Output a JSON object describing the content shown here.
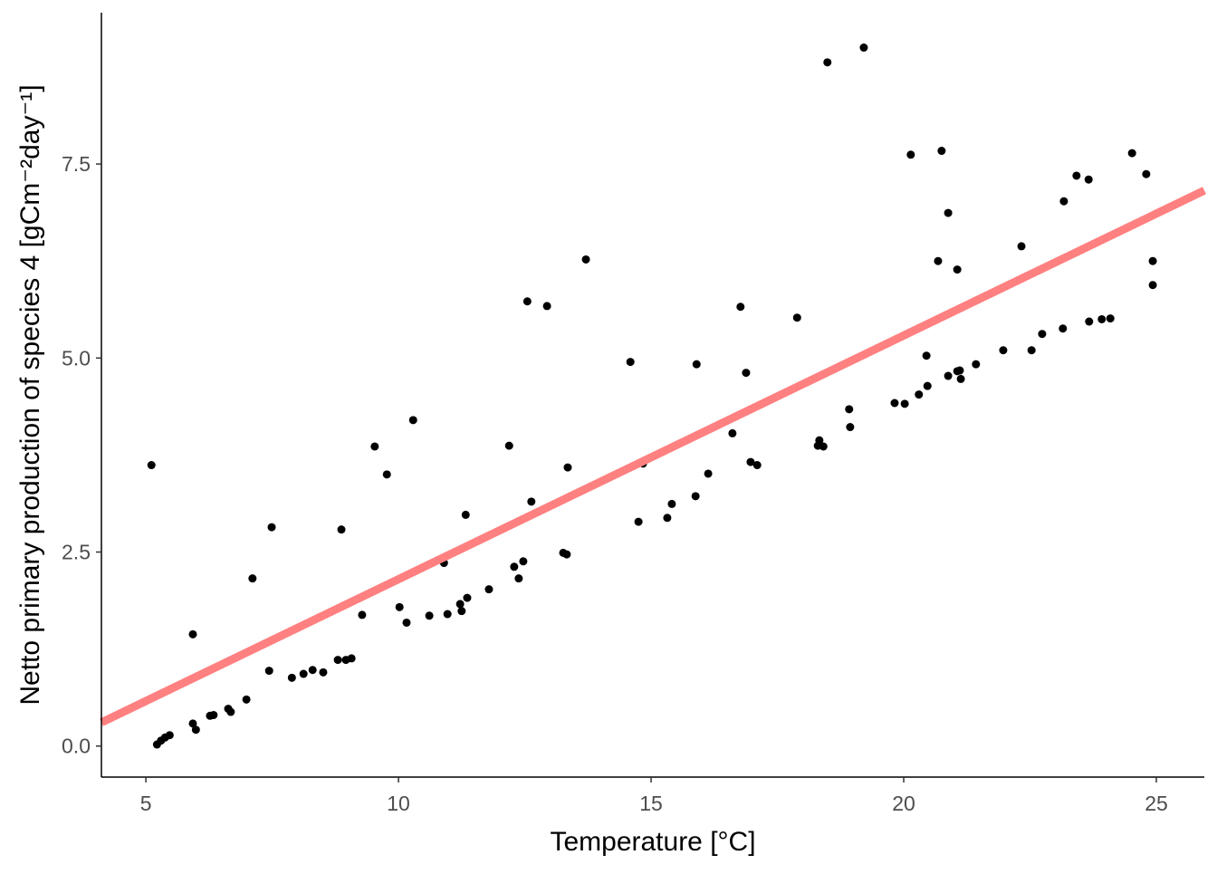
{
  "chart_data": {
    "type": "scatter",
    "title": "",
    "xlabel": "Temperature [°C]",
    "ylabel": "Netto primary production of species 4 [gCm⁻²day⁻¹]",
    "xlim": [
      4.12,
      25.95
    ],
    "ylim": [
      -0.4,
      9.45
    ],
    "xticks": [
      5,
      10,
      15,
      20,
      25
    ],
    "xtick_labels": [
      "5",
      "10",
      "15",
      "20",
      "25"
    ],
    "yticks": [
      0,
      2.5,
      5,
      7.5
    ],
    "ytick_labels": [
      "0.0",
      "2.5",
      "5.0",
      "7.5"
    ],
    "grid": false,
    "point_color": "#000000",
    "fit_color": "#ff8080",
    "fit": {
      "intercept": -0.99,
      "slope": 0.314
    },
    "points": [
      [
        5.11,
        3.62
      ],
      [
        5.22,
        0.02
      ],
      [
        5.3,
        0.07
      ],
      [
        5.38,
        0.11
      ],
      [
        5.47,
        0.14
      ],
      [
        5.93,
        1.44
      ],
      [
        5.93,
        0.29
      ],
      [
        5.99,
        0.21
      ],
      [
        6.27,
        0.39
      ],
      [
        6.34,
        0.4
      ],
      [
        6.63,
        0.48
      ],
      [
        6.68,
        0.44
      ],
      [
        6.99,
        0.6
      ],
      [
        7.11,
        2.16
      ],
      [
        7.44,
        0.97
      ],
      [
        7.49,
        2.82
      ],
      [
        7.89,
        0.88
      ],
      [
        8.12,
        0.93
      ],
      [
        8.3,
        0.98
      ],
      [
        8.51,
        0.95
      ],
      [
        8.8,
        1.11
      ],
      [
        8.87,
        2.79
      ],
      [
        8.96,
        1.11
      ],
      [
        9.07,
        1.13
      ],
      [
        9.28,
        1.69
      ],
      [
        9.53,
        3.86
      ],
      [
        9.77,
        3.5
      ],
      [
        10.02,
        1.79
      ],
      [
        10.16,
        1.59
      ],
      [
        10.29,
        4.2
      ],
      [
        10.61,
        1.68
      ],
      [
        10.9,
        2.36
      ],
      [
        10.97,
        1.7
      ],
      [
        11.22,
        1.83
      ],
      [
        11.25,
        1.74
      ],
      [
        11.33,
        2.98
      ],
      [
        11.36,
        1.91
      ],
      [
        11.79,
        2.02
      ],
      [
        12.19,
        3.87
      ],
      [
        12.29,
        2.31
      ],
      [
        12.38,
        2.16
      ],
      [
        12.47,
        2.38
      ],
      [
        12.55,
        5.73
      ],
      [
        12.63,
        3.15
      ],
      [
        12.94,
        5.67
      ],
      [
        13.26,
        2.49
      ],
      [
        13.33,
        2.47
      ],
      [
        13.35,
        3.59
      ],
      [
        13.71,
        6.27
      ],
      [
        14.59,
        4.95
      ],
      [
        14.75,
        2.89
      ],
      [
        14.84,
        3.64
      ],
      [
        15.32,
        2.94
      ],
      [
        15.41,
        3.12
      ],
      [
        15.88,
        3.22
      ],
      [
        15.9,
        4.92
      ],
      [
        16.13,
        3.51
      ],
      [
        16.61,
        4.03
      ],
      [
        16.77,
        5.66
      ],
      [
        16.88,
        4.81
      ],
      [
        16.97,
        3.66
      ],
      [
        17.1,
        3.62
      ],
      [
        17.89,
        5.52
      ],
      [
        18.3,
        3.87
      ],
      [
        18.33,
        3.94
      ],
      [
        18.41,
        3.86
      ],
      [
        18.49,
        8.81
      ],
      [
        18.92,
        4.34
      ],
      [
        18.94,
        4.11
      ],
      [
        19.21,
        9.0
      ],
      [
        19.82,
        4.42
      ],
      [
        20.02,
        4.41
      ],
      [
        20.14,
        7.62
      ],
      [
        20.3,
        4.53
      ],
      [
        20.45,
        5.03
      ],
      [
        20.47,
        4.64
      ],
      [
        20.68,
        6.25
      ],
      [
        20.75,
        7.67
      ],
      [
        20.88,
        6.87
      ],
      [
        20.88,
        4.77
      ],
      [
        21.06,
        6.14
      ],
      [
        21.06,
        4.83
      ],
      [
        21.11,
        4.84
      ],
      [
        21.13,
        4.73
      ],
      [
        21.43,
        4.92
      ],
      [
        21.97,
        5.1
      ],
      [
        22.33,
        6.44
      ],
      [
        22.53,
        5.1
      ],
      [
        22.74,
        5.31
      ],
      [
        23.15,
        5.38
      ],
      [
        23.17,
        7.02
      ],
      [
        23.42,
        7.35
      ],
      [
        23.66,
        7.3
      ],
      [
        23.67,
        5.47
      ],
      [
        23.92,
        5.5
      ],
      [
        24.09,
        5.51
      ],
      [
        24.52,
        7.64
      ],
      [
        24.8,
        7.37
      ],
      [
        24.93,
        6.25
      ],
      [
        24.93,
        5.94
      ]
    ]
  }
}
